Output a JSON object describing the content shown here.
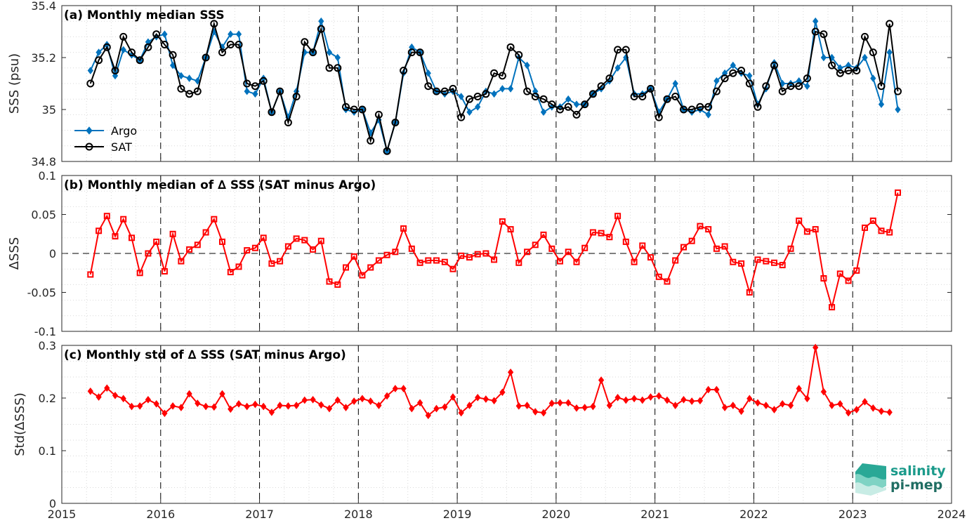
{
  "colors": {
    "argo": "#0072bd",
    "sat": "#000000",
    "delta": "#ff0000",
    "logo": "#1a9a8a"
  },
  "logo": {
    "line1": "salinity",
    "line2": "pi-mep",
    "icon": "salinity-pi-mep-logo-icon"
  },
  "x_axis": {
    "ticks": [
      2015,
      2016,
      2017,
      2018,
      2019,
      2020,
      2021,
      2022,
      2023,
      2024
    ],
    "lim": [
      2015,
      2024
    ]
  },
  "chart_data": [
    {
      "type": "line",
      "title": "(a) Monthly median SSS",
      "ylabel": "SSS (psu)",
      "ylim": [
        34.8,
        35.4
      ],
      "yticks": [
        "34.8",
        "35",
        "35.2",
        "35.4"
      ],
      "grid": true,
      "legend": "bottom-left",
      "x_start": 2015.29,
      "x_step": 0.08333,
      "series": [
        {
          "name": "Argo",
          "marker": "diamond",
          "values": [
            35.15,
            35.22,
            35.25,
            35.13,
            35.23,
            35.21,
            35.19,
            35.26,
            35.28,
            35.29,
            35.17,
            35.13,
            35.12,
            35.11,
            35.2,
            35.3,
            35.24,
            35.29,
            35.29,
            35.07,
            35.06,
            35.12,
            34.99,
            35.07,
            34.97,
            35.07,
            35.22,
            35.22,
            35.34,
            35.22,
            35.2,
            35.0,
            34.99,
            35.0,
            34.91,
            34.96,
            34.84,
            34.95,
            35.14,
            35.24,
            35.22,
            35.14,
            35.07,
            35.06,
            35.07,
            35.05,
            34.99,
            35.01,
            35.07,
            35.06,
            35.08,
            35.08,
            35.2,
            35.17,
            35.07,
            34.99,
            35.01,
            35.01,
            35.04,
            35.02,
            35.02,
            35.06,
            35.08,
            35.11,
            35.16,
            35.2,
            35.06,
            35.06,
            35.08,
            34.99,
            35.04,
            35.1,
            35.0,
            34.99,
            35.0,
            34.98,
            35.11,
            35.14,
            35.17,
            35.14,
            35.13,
            35.02,
            35.08,
            35.18,
            35.1,
            35.1,
            35.11,
            35.09,
            35.34,
            35.2,
            35.2,
            35.16,
            35.17,
            35.16,
            35.2,
            35.12,
            35.02,
            35.22,
            35.0
          ]
        },
        {
          "name": "SAT",
          "marker": "circle",
          "values": [
            35.1,
            35.19,
            35.24,
            35.15,
            35.28,
            35.22,
            35.19,
            35.24,
            35.29,
            35.25,
            35.21,
            35.08,
            35.06,
            35.07,
            35.2,
            35.33,
            35.22,
            35.25,
            35.25,
            35.1,
            35.09,
            35.11,
            34.99,
            35.07,
            34.95,
            35.05,
            35.26,
            35.22,
            35.31,
            35.16,
            35.16,
            35.01,
            35.0,
            35.0,
            34.88,
            34.98,
            34.84,
            34.95,
            35.15,
            35.22,
            35.22,
            35.09,
            35.07,
            35.07,
            35.08,
            34.97,
            35.04,
            35.05,
            35.06,
            35.14,
            35.13,
            35.24,
            35.21,
            35.07,
            35.05,
            35.04,
            35.02,
            35.0,
            35.01,
            34.98,
            35.02,
            35.06,
            35.09,
            35.12,
            35.23,
            35.23,
            35.05,
            35.05,
            35.08,
            34.97,
            35.04,
            35.05,
            35.0,
            35.0,
            35.01,
            35.01,
            35.07,
            35.12,
            35.14,
            35.15,
            35.1,
            35.01,
            35.09,
            35.17,
            35.07,
            35.09,
            35.09,
            35.12,
            35.3,
            35.29,
            35.17,
            35.14,
            35.15,
            35.15,
            35.28,
            35.22,
            35.09,
            35.33,
            35.07
          ]
        }
      ]
    },
    {
      "type": "line",
      "title": "(b) Monthly median of ∆ SSS (SAT minus Argo)",
      "ylabel": "ΔSSS",
      "ylim": [
        -0.1,
        0.1
      ],
      "yticks": [
        "-0.1",
        "-0.05",
        "0",
        "0.05",
        "0.1"
      ],
      "grid": true,
      "x_start": 2015.29,
      "x_step": 0.08333,
      "series": [
        {
          "name": "",
          "marker": "square",
          "values": [
            -0.027,
            0.029,
            0.048,
            0.022,
            0.044,
            0.02,
            -0.025,
            0.0,
            0.015,
            -0.023,
            0.025,
            -0.01,
            0.005,
            0.011,
            0.027,
            0.044,
            0.015,
            -0.024,
            -0.017,
            0.004,
            0.007,
            0.02,
            -0.013,
            -0.01,
            0.009,
            0.019,
            0.017,
            0.005,
            0.016,
            -0.036,
            -0.04,
            -0.018,
            -0.004,
            -0.028,
            -0.018,
            -0.009,
            -0.002,
            0.002,
            0.032,
            0.006,
            -0.012,
            -0.009,
            -0.009,
            -0.011,
            -0.02,
            -0.003,
            -0.005,
            -0.001,
            0.0,
            -0.008,
            0.041,
            0.031,
            -0.012,
            0.002,
            0.011,
            0.024,
            0.006,
            -0.01,
            0.002,
            -0.011,
            0.007,
            0.027,
            0.026,
            0.021,
            0.048,
            0.015,
            -0.011,
            0.01,
            -0.005,
            -0.03,
            -0.036,
            -0.009,
            0.008,
            0.016,
            0.035,
            0.031,
            0.006,
            0.009,
            -0.011,
            -0.013,
            -0.05,
            -0.008,
            -0.01,
            -0.012,
            -0.015,
            0.006,
            0.042,
            0.028,
            0.031,
            -0.032,
            -0.069,
            -0.026,
            -0.035,
            -0.022,
            0.033,
            0.042,
            0.029,
            0.027,
            0.078
          ]
        }
      ]
    },
    {
      "type": "line",
      "title": "(c) Monthly std of ∆ SSS (SAT minus Argo)",
      "ylabel": "Std(ΔSSS)",
      "ylim": [
        0,
        0.3
      ],
      "yticks": [
        "0",
        "0.1",
        "0.2",
        "0.3"
      ],
      "grid": true,
      "x_start": 2015.29,
      "x_step": 0.08333,
      "series": [
        {
          "name": "",
          "marker": "diamond",
          "values": [
            0.213,
            0.202,
            0.219,
            0.205,
            0.199,
            0.184,
            0.185,
            0.197,
            0.189,
            0.171,
            0.185,
            0.182,
            0.208,
            0.19,
            0.184,
            0.183,
            0.208,
            0.179,
            0.189,
            0.184,
            0.188,
            0.184,
            0.173,
            0.186,
            0.185,
            0.186,
            0.196,
            0.197,
            0.187,
            0.18,
            0.196,
            0.182,
            0.194,
            0.199,
            0.194,
            0.186,
            0.204,
            0.218,
            0.218,
            0.18,
            0.191,
            0.167,
            0.18,
            0.183,
            0.202,
            0.172,
            0.186,
            0.201,
            0.198,
            0.195,
            0.211,
            0.249,
            0.185,
            0.186,
            0.174,
            0.172,
            0.19,
            0.191,
            0.191,
            0.181,
            0.182,
            0.184,
            0.234,
            0.186,
            0.201,
            0.196,
            0.199,
            0.196,
            0.202,
            0.204,
            0.196,
            0.186,
            0.197,
            0.194,
            0.195,
            0.216,
            0.216,
            0.182,
            0.186,
            0.175,
            0.199,
            0.191,
            0.186,
            0.178,
            0.189,
            0.186,
            0.218,
            0.199,
            0.296,
            0.212,
            0.186,
            0.189,
            0.172,
            0.178,
            0.193,
            0.181,
            0.175,
            0.173
          ]
        }
      ]
    }
  ]
}
